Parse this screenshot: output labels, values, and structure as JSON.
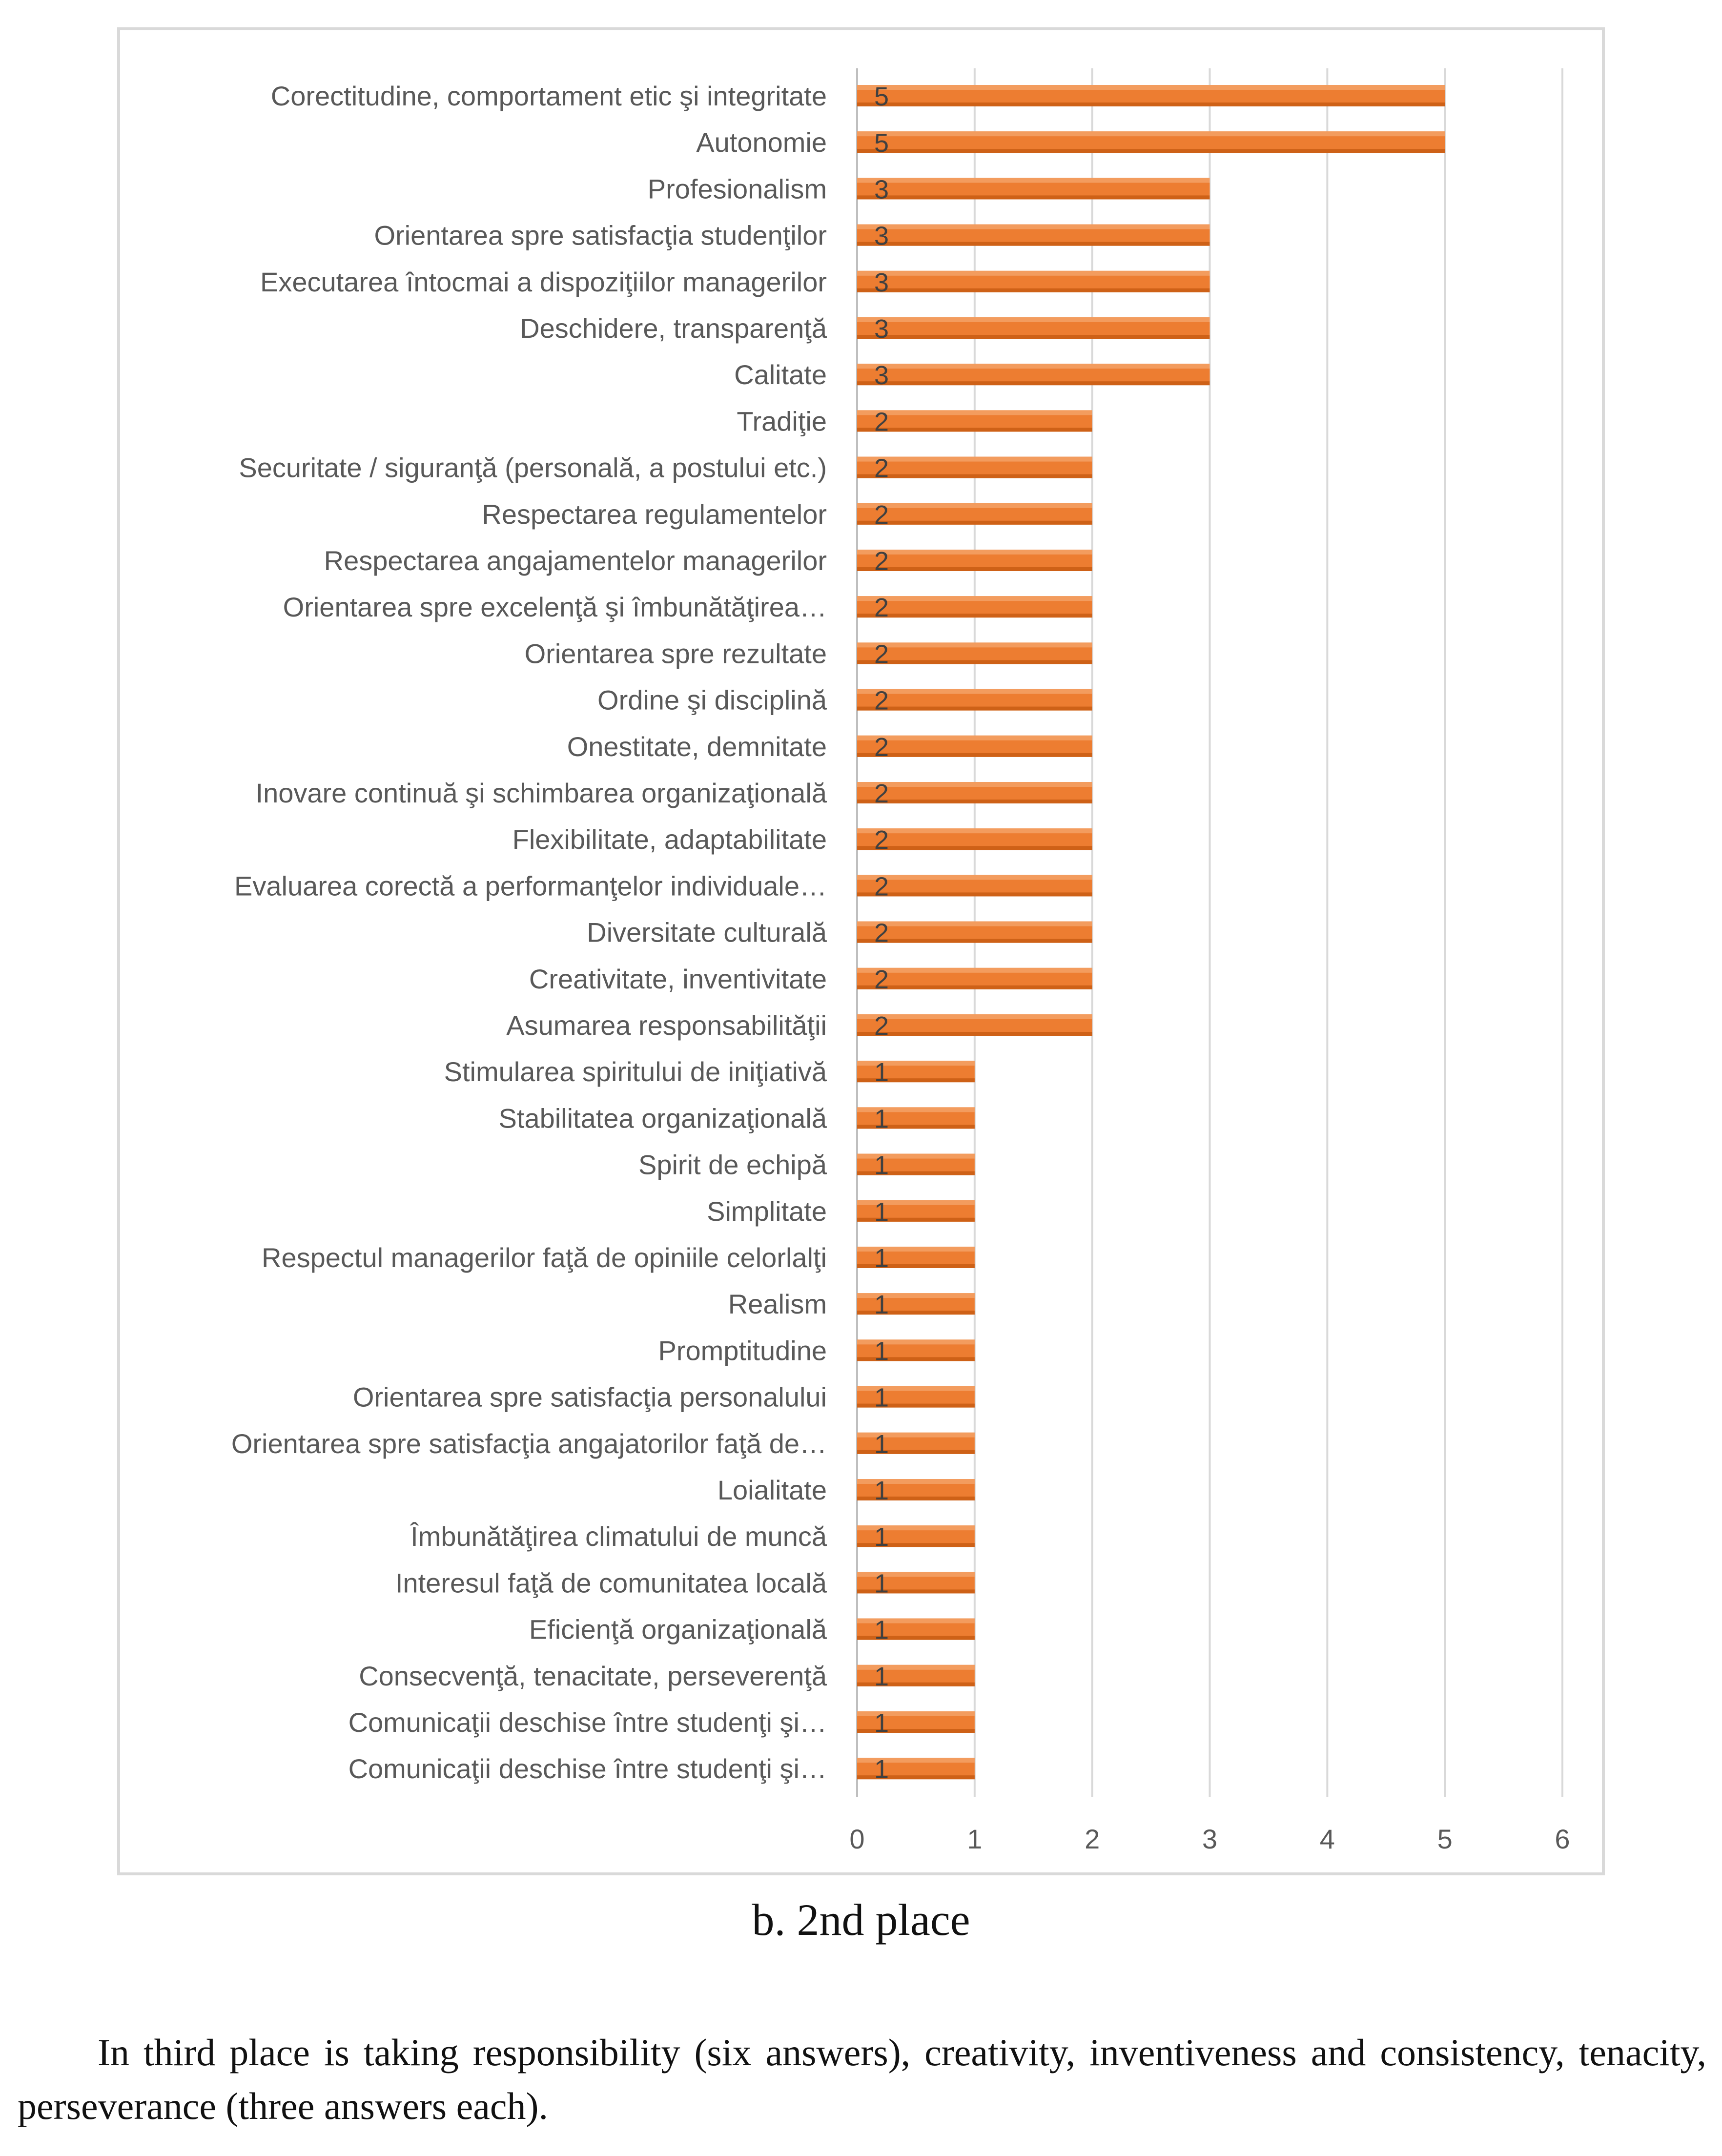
{
  "chart_data": {
    "type": "bar",
    "orientation": "horizontal",
    "title": "",
    "xlabel": "",
    "ylabel": "",
    "xlim": [
      0,
      6
    ],
    "ticks": [
      "0",
      "1",
      "2",
      "3",
      "4",
      "5",
      "6"
    ],
    "tick_values": [
      0,
      1,
      2,
      3,
      4,
      5,
      6
    ],
    "grid": true,
    "bar_color": "#ed7d31",
    "categories": [
      "Corectitudine, comportament etic şi integritate",
      "Autonomie",
      "Profesionalism",
      "Orientarea spre satisfacţia studenţilor",
      "Executarea întocmai a dispoziţiilor managerilor",
      "Deschidere, transparenţă",
      "Calitate",
      "Tradiţie",
      "Securitate / siguranţă (personală, a postului etc.)",
      "Respectarea regulamentelor",
      "Respectarea angajamentelor managerilor",
      "Orientarea spre excelenţă şi îmbunătăţirea…",
      "Orientarea spre rezultate",
      "Ordine şi disciplină",
      "Onestitate, demnitate",
      "Inovare continuă şi schimbarea organizaţională",
      "Flexibilitate, adaptabilitate",
      "Evaluarea corectă a performanţelor individuale…",
      "Diversitate culturală",
      "Creativitate, inventivitate",
      "Asumarea responsabilităţii",
      "Stimularea spiritului de iniţiativă",
      "Stabilitatea organizaţională",
      "Spirit de echipă",
      "Simplitate",
      "Respectul managerilor faţă de opiniile celorlalţi",
      "Realism",
      "Promptitudine",
      "Orientarea spre satisfacţia personalului",
      "Orientarea spre satisfacţia angajatorilor faţă de…",
      "Loialitate",
      "Îmbunătăţirea climatului de muncă",
      "Interesul faţă de comunitatea locală",
      "Eficienţă organizaţională",
      "Consecvenţă, tenacitate, perseverenţă",
      "Comunicaţii deschise între studenţi şi…",
      "Comunicaţii deschise între studenţi şi…"
    ],
    "values": [
      5,
      5,
      3,
      3,
      3,
      3,
      3,
      2,
      2,
      2,
      2,
      2,
      2,
      2,
      2,
      2,
      2,
      2,
      2,
      2,
      2,
      1,
      1,
      1,
      1,
      1,
      1,
      1,
      1,
      1,
      1,
      1,
      1,
      1,
      1,
      1,
      1
    ],
    "data_labels": [
      "5",
      "5",
      "3",
      "3",
      "3",
      "3",
      "3",
      "2",
      "2",
      "2",
      "2",
      "2",
      "2",
      "2",
      "2",
      "2",
      "2",
      "2",
      "2",
      "2",
      "2",
      "1",
      "1",
      "1",
      "1",
      "1",
      "1",
      "1",
      "1",
      "1",
      "1",
      "1",
      "1",
      "1",
      "1",
      "1",
      "1"
    ]
  },
  "caption": "b. 2nd place",
  "paragraph": "In third place is taking responsibility (six answers), creativity, inventiveness and consistency, tenacity, perseverance (three answers each)."
}
